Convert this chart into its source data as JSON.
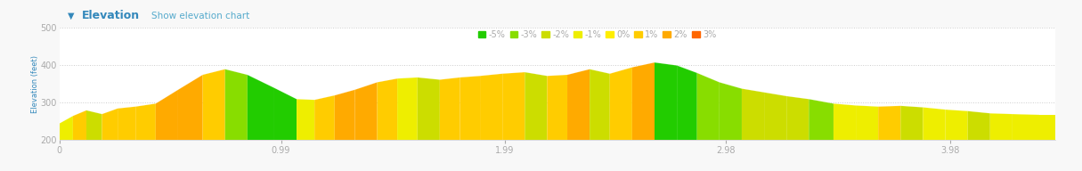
{
  "title": "Elevation",
  "subtitle": "Show elevation chart",
  "ylabel": "Elevation (feet)",
  "xlim": [
    0,
    4.45
  ],
  "ylim": [
    200,
    500
  ],
  "yticks": [
    200,
    300,
    400,
    500
  ],
  "xticks": [
    0,
    0.99,
    1.99,
    2.98,
    3.98
  ],
  "background_color": "#f8f8f8",
  "plot_bg_color": "#ffffff",
  "header_bg_color": "#f0f0f0",
  "grid_color": "#cccccc",
  "legend_labels": [
    "-5%",
    "-3%",
    "-2%",
    "-1%",
    "0%",
    "1%",
    "2%",
    "3%"
  ],
  "legend_colors": [
    "#22cc00",
    "#88dd00",
    "#ccdd00",
    "#eeee00",
    "#ffee00",
    "#ffcc00",
    "#ffaa00",
    "#ff6600"
  ],
  "title_color": "#3388bb",
  "subtitle_color": "#55aacc",
  "axis_label_color": "#3388bb",
  "tick_color": "#aaaaaa",
  "segments": [
    {
      "x": [
        0.0,
        0.06
      ],
      "y": [
        245,
        265
      ],
      "color": "#eeee00"
    },
    {
      "x": [
        0.06,
        0.12
      ],
      "y": [
        265,
        280
      ],
      "color": "#ffcc00"
    },
    {
      "x": [
        0.12,
        0.19
      ],
      "y": [
        280,
        270
      ],
      "color": "#ccdd00"
    },
    {
      "x": [
        0.19,
        0.26
      ],
      "y": [
        270,
        285
      ],
      "color": "#ffcc00"
    },
    {
      "x": [
        0.26,
        0.34
      ],
      "y": [
        285,
        290
      ],
      "color": "#ffcc00"
    },
    {
      "x": [
        0.34,
        0.43
      ],
      "y": [
        290,
        298
      ],
      "color": "#ffcc00"
    },
    {
      "x": [
        0.43,
        0.53
      ],
      "y": [
        298,
        335
      ],
      "color": "#ffaa00"
    },
    {
      "x": [
        0.53,
        0.64
      ],
      "y": [
        335,
        375
      ],
      "color": "#ffaa00"
    },
    {
      "x": [
        0.64,
        0.74
      ],
      "y": [
        375,
        390
      ],
      "color": "#ffcc00"
    },
    {
      "x": [
        0.74,
        0.84
      ],
      "y": [
        390,
        375
      ],
      "color": "#88dd00"
    },
    {
      "x": [
        0.84,
        0.96
      ],
      "y": [
        375,
        340
      ],
      "color": "#22cc00"
    },
    {
      "x": [
        0.96,
        1.06
      ],
      "y": [
        340,
        310
      ],
      "color": "#22cc00"
    },
    {
      "x": [
        1.06,
        1.14
      ],
      "y": [
        310,
        308
      ],
      "color": "#eeee00"
    },
    {
      "x": [
        1.14,
        1.23
      ],
      "y": [
        308,
        320
      ],
      "color": "#ffcc00"
    },
    {
      "x": [
        1.23,
        1.32
      ],
      "y": [
        320,
        335
      ],
      "color": "#ffaa00"
    },
    {
      "x": [
        1.32,
        1.42
      ],
      "y": [
        335,
        355
      ],
      "color": "#ffaa00"
    },
    {
      "x": [
        1.42,
        1.51
      ],
      "y": [
        355,
        365
      ],
      "color": "#ffcc00"
    },
    {
      "x": [
        1.51,
        1.6
      ],
      "y": [
        365,
        368
      ],
      "color": "#eeee00"
    },
    {
      "x": [
        1.6,
        1.7
      ],
      "y": [
        368,
        362
      ],
      "color": "#ccdd00"
    },
    {
      "x": [
        1.7,
        1.79
      ],
      "y": [
        362,
        368
      ],
      "color": "#ffcc00"
    },
    {
      "x": [
        1.79,
        1.88
      ],
      "y": [
        368,
        372
      ],
      "color": "#ffcc00"
    },
    {
      "x": [
        1.88,
        1.98
      ],
      "y": [
        372,
        378
      ],
      "color": "#ffcc00"
    },
    {
      "x": [
        1.98,
        2.08
      ],
      "y": [
        378,
        382
      ],
      "color": "#ffcc00"
    },
    {
      "x": [
        2.08,
        2.18
      ],
      "y": [
        382,
        372
      ],
      "color": "#ccdd00"
    },
    {
      "x": [
        2.18,
        2.27
      ],
      "y": [
        372,
        375
      ],
      "color": "#ffcc00"
    },
    {
      "x": [
        2.27,
        2.37
      ],
      "y": [
        375,
        390
      ],
      "color": "#ffaa00"
    },
    {
      "x": [
        2.37,
        2.46
      ],
      "y": [
        390,
        378
      ],
      "color": "#ccdd00"
    },
    {
      "x": [
        2.46,
        2.56
      ],
      "y": [
        378,
        395
      ],
      "color": "#ffcc00"
    },
    {
      "x": [
        2.56,
        2.66
      ],
      "y": [
        395,
        408
      ],
      "color": "#ffaa00"
    },
    {
      "x": [
        2.66,
        2.76
      ],
      "y": [
        408,
        400
      ],
      "color": "#22cc00"
    },
    {
      "x": [
        2.76,
        2.85
      ],
      "y": [
        400,
        380
      ],
      "color": "#22cc00"
    },
    {
      "x": [
        2.85,
        2.95
      ],
      "y": [
        380,
        355
      ],
      "color": "#88dd00"
    },
    {
      "x": [
        2.95,
        3.05
      ],
      "y": [
        355,
        338
      ],
      "color": "#88dd00"
    },
    {
      "x": [
        3.05,
        3.15
      ],
      "y": [
        338,
        328
      ],
      "color": "#ccdd00"
    },
    {
      "x": [
        3.15,
        3.25
      ],
      "y": [
        328,
        318
      ],
      "color": "#ccdd00"
    },
    {
      "x": [
        3.25,
        3.35
      ],
      "y": [
        318,
        310
      ],
      "color": "#ccdd00"
    },
    {
      "x": [
        3.35,
        3.46
      ],
      "y": [
        310,
        298
      ],
      "color": "#88dd00"
    },
    {
      "x": [
        3.46,
        3.56
      ],
      "y": [
        298,
        293
      ],
      "color": "#eeee00"
    },
    {
      "x": [
        3.56,
        3.66
      ],
      "y": [
        293,
        290
      ],
      "color": "#eeee00"
    },
    {
      "x": [
        3.66,
        3.76
      ],
      "y": [
        290,
        292
      ],
      "color": "#ffcc00"
    },
    {
      "x": [
        3.76,
        3.86
      ],
      "y": [
        292,
        288
      ],
      "color": "#ccdd00"
    },
    {
      "x": [
        3.86,
        3.96
      ],
      "y": [
        288,
        282
      ],
      "color": "#eeee00"
    },
    {
      "x": [
        3.96,
        4.06
      ],
      "y": [
        282,
        278
      ],
      "color": "#eeee00"
    },
    {
      "x": [
        4.06,
        4.16
      ],
      "y": [
        278,
        272
      ],
      "color": "#ccdd00"
    },
    {
      "x": [
        4.16,
        4.26
      ],
      "y": [
        272,
        270
      ],
      "color": "#eeee00"
    },
    {
      "x": [
        4.26,
        4.38
      ],
      "y": [
        270,
        268
      ],
      "color": "#eeee00"
    },
    {
      "x": [
        4.38,
        4.45
      ],
      "y": [
        268,
        268
      ],
      "color": "#eeee00"
    }
  ]
}
